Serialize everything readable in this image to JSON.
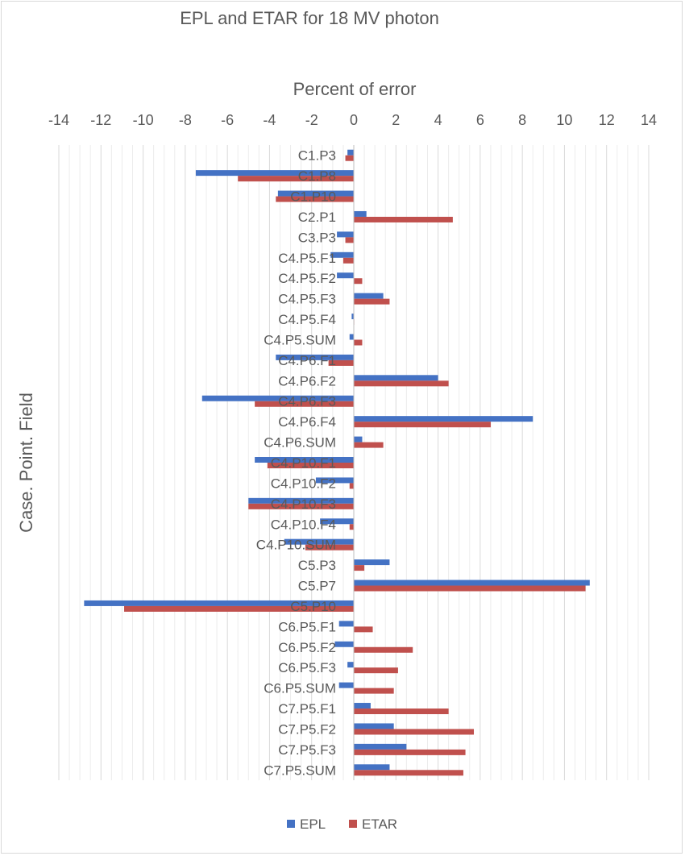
{
  "chart_data": {
    "type": "bar",
    "orientation": "horizontal",
    "title": "EPL and ETAR for 18 MV photon",
    "xlabel": "Percent of error",
    "ylabel": "Case. Point. Field",
    "xlim": [
      -14,
      14
    ],
    "xticks": [
      "-14",
      "-12",
      "-10",
      "-8",
      "-6",
      "-4",
      "-2",
      "0",
      "2",
      "4",
      "6",
      "8",
      "10",
      "12",
      "14"
    ],
    "grid": true,
    "legend_position": "bottom",
    "categories": [
      "C1.P3",
      "C1.P8",
      "C1.P10",
      "C2.P1",
      "C3.P3",
      "C4.P5.F1",
      "C4.P5.F2",
      "C4.P5.F3",
      "C4.P5.F4",
      "C4.P5.SUM",
      "C4.P6.F1",
      "C4.P6.F2",
      "C4.P6.F3",
      "C4.P6.F4",
      "C4.P6.SUM",
      "C4.P10.F1",
      "C4.P10.F2",
      "C4.P10.F3",
      "C4.P10.F4",
      "C4.P10.SUM",
      "C5.P3",
      "C5.P7",
      "C5.P10",
      "C6.P5.F1",
      "C6.P5.F2",
      "C6.P5.F3",
      "C6.P5.SUM",
      "C7.P5.F1",
      "C7.P5.F2",
      "C7.P5.F3",
      "C7.P5.SUM"
    ],
    "series": [
      {
        "name": "EPL",
        "color": "#4472c4",
        "values": [
          -0.3,
          -7.5,
          -3.6,
          0.6,
          -0.8,
          -1.1,
          -0.8,
          1.4,
          -0.1,
          -0.2,
          -3.7,
          4.0,
          -7.2,
          8.5,
          0.4,
          -4.7,
          -1.8,
          -5.0,
          -1.6,
          -3.3,
          1.7,
          11.2,
          -12.8,
          -0.7,
          -0.9,
          -0.3,
          -0.7,
          0.8,
          1.9,
          2.5,
          1.7
        ]
      },
      {
        "name": "ETAR",
        "color": "#c0504d",
        "values": [
          -0.4,
          -5.5,
          -3.7,
          4.7,
          -0.4,
          -0.5,
          0.4,
          1.7,
          0.0,
          0.4,
          -1.2,
          4.5,
          -4.7,
          6.5,
          1.4,
          -4.1,
          -0.2,
          -5.0,
          -0.2,
          -2.3,
          0.5,
          11.0,
          -10.9,
          0.9,
          2.8,
          2.1,
          1.9,
          4.5,
          5.7,
          5.3,
          5.2
        ]
      }
    ]
  }
}
